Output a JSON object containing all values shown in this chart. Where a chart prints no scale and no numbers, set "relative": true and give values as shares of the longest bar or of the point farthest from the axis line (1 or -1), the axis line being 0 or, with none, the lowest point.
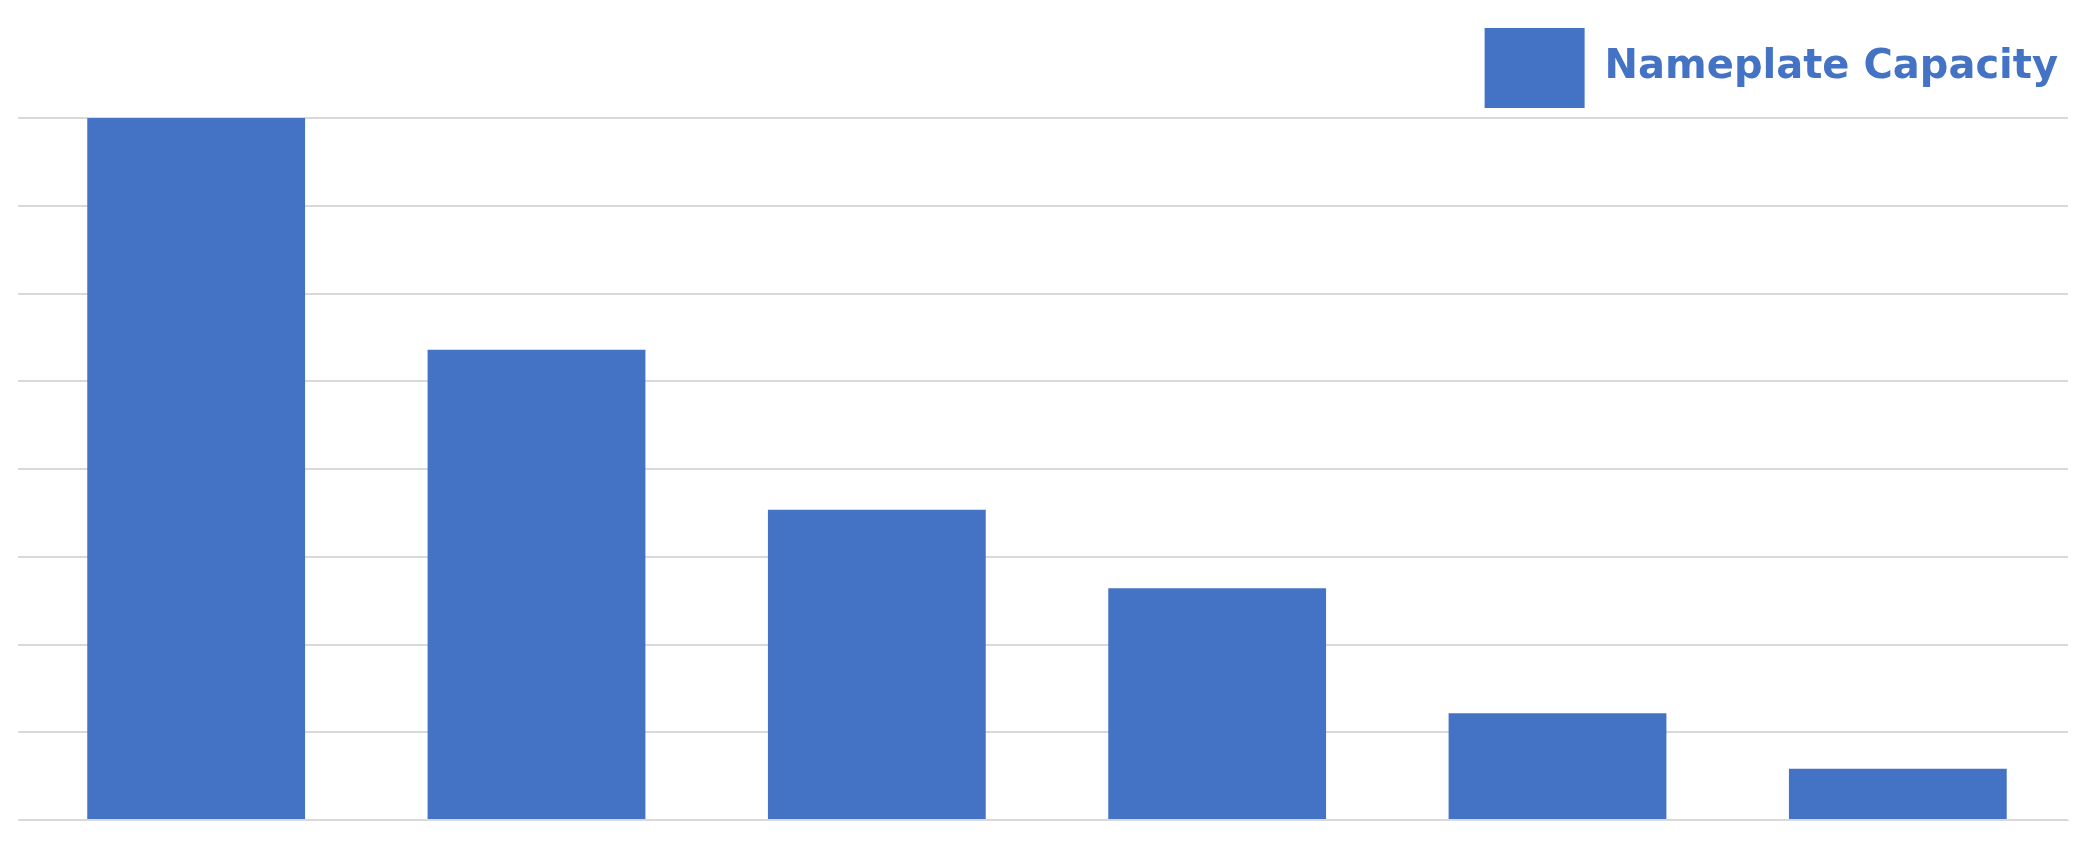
{
  "chart_data": {
    "type": "bar",
    "relative": true,
    "categories": [
      null,
      null,
      null,
      null,
      null,
      null
    ],
    "series": [
      {
        "name": "Nameplate Capacity",
        "color": "#4472c4",
        "values": [
          1,
          0.67,
          0.442,
          0.33,
          0.152,
          0.073
        ]
      }
    ],
    "grid": "y",
    "legend": "top right"
  }
}
